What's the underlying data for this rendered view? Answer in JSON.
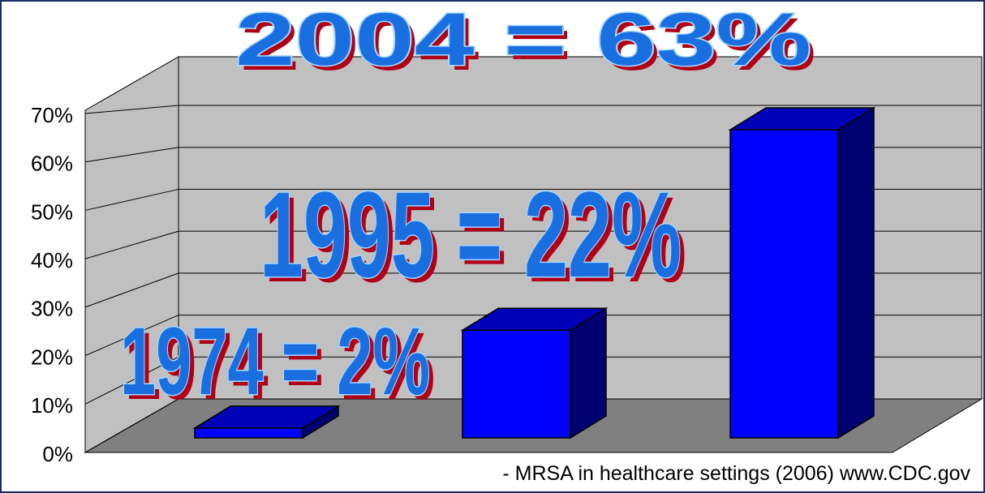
{
  "chart_data": {
    "type": "bar",
    "categories": [
      null,
      null,
      null
    ],
    "values": [
      2,
      22,
      63
    ],
    "color": "#0000ff",
    "ylim": [
      0,
      70
    ],
    "yticks": [
      {
        "value": 0,
        "label": "0%"
      },
      {
        "value": 10,
        "label": "10%"
      },
      {
        "value": 20,
        "label": "20%"
      },
      {
        "value": 30,
        "label": "30%"
      },
      {
        "value": 40,
        "label": "40%"
      },
      {
        "value": 50,
        "label": "50%"
      },
      {
        "value": 60,
        "label": "60%"
      },
      {
        "value": 70,
        "label": "70%"
      }
    ],
    "grid": true,
    "annotations": [
      "2004 = 63%",
      "1995 = 22%",
      "1974 = 2%"
    ],
    "source": "- MRSA in healthcare settings (2006) www.CDC.gov"
  }
}
